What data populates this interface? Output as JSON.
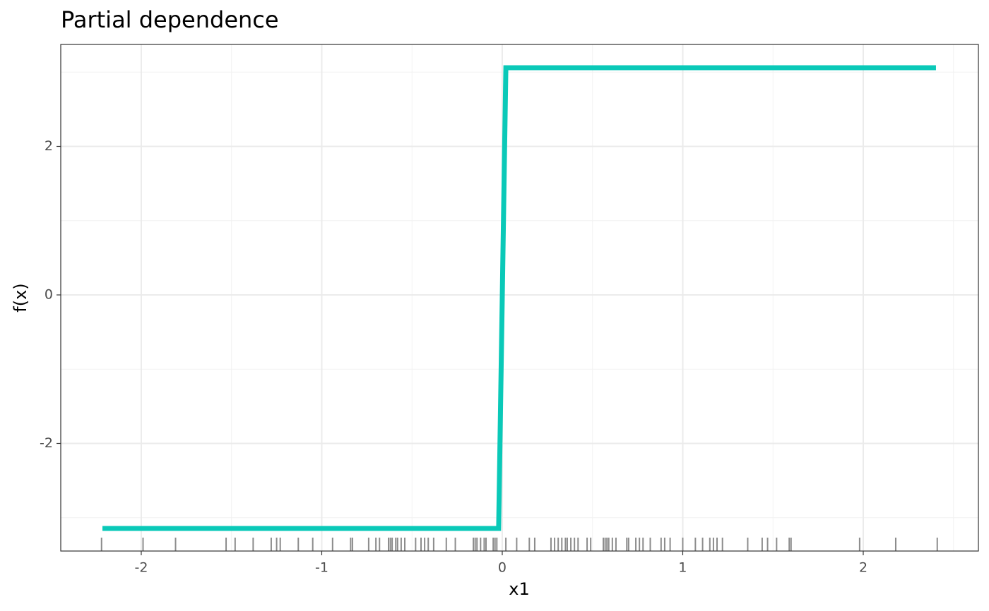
{
  "chart_data": {
    "type": "line",
    "title": "Partial dependence",
    "x_label": "x1",
    "y_label": "f(x)",
    "x": [
      -2.215,
      -0.02,
      0.02,
      2.403
    ],
    "values": [
      -3.145,
      -3.145,
      3.06,
      3.06
    ],
    "color": "#0ac9b8",
    "rug": [
      -2.22,
      -1.99,
      -1.81,
      -1.53,
      -1.48,
      -1.38,
      -1.28,
      -1.25,
      -1.23,
      -1.13,
      -1.05,
      -0.94,
      -0.84,
      -0.83,
      -0.74,
      -0.7,
      -0.68,
      -0.63,
      -0.62,
      -0.61,
      -0.59,
      -0.58,
      -0.56,
      -0.54,
      -0.48,
      -0.45,
      -0.43,
      -0.41,
      -0.38,
      -0.31,
      -0.26,
      -0.16,
      -0.15,
      -0.14,
      -0.12,
      -0.1,
      -0.09,
      -0.05,
      -0.04,
      -0.03,
      0.02,
      0.08,
      0.15,
      0.18,
      0.27,
      0.29,
      0.31,
      0.33,
      0.35,
      0.36,
      0.38,
      0.4,
      0.42,
      0.47,
      0.49,
      0.56,
      0.57,
      0.58,
      0.59,
      0.61,
      0.63,
      0.69,
      0.7,
      0.74,
      0.76,
      0.78,
      0.82,
      0.88,
      0.9,
      0.93,
      1.0,
      1.07,
      1.11,
      1.15,
      1.17,
      1.19,
      1.22,
      1.36,
      1.44,
      1.47,
      1.52,
      1.59,
      1.6,
      1.98,
      2.18,
      2.41
    ],
    "rug_color": "#8c8c8c",
    "xlim": [
      -2.446,
      2.638
    ],
    "xticks": [
      -2,
      -1,
      0,
      1,
      2
    ],
    "ylim": [
      -3.449,
      3.373
    ],
    "yticks": [
      -2,
      0,
      2
    ],
    "grid": true
  }
}
